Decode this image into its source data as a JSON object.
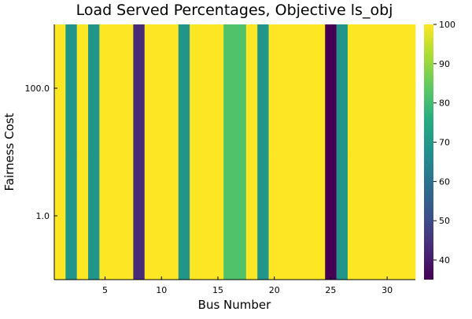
{
  "chart_data": {
    "type": "heatmap",
    "title": "Load Served Percentages, Objective ls_obj",
    "xlabel": "Bus Number",
    "ylabel": "Fairness Cost",
    "x_range": [
      0.5,
      32.5
    ],
    "x_ticks": [
      5,
      10,
      15,
      20,
      25,
      30
    ],
    "y_categories": [
      "1.0",
      "100.0"
    ],
    "colorbar": {
      "colormap": "viridis",
      "range": [
        35,
        100
      ],
      "ticks": [
        40,
        50,
        60,
        70,
        80,
        90,
        100
      ]
    },
    "grid": false,
    "bus_numbers": [
      1,
      2,
      3,
      4,
      5,
      6,
      7,
      8,
      9,
      10,
      11,
      12,
      13,
      14,
      15,
      16,
      17,
      18,
      19,
      20,
      21,
      22,
      23,
      24,
      25,
      26,
      27,
      28,
      29,
      30,
      31,
      32
    ],
    "values": [
      [
        100,
        69,
        100,
        69,
        100,
        100,
        100,
        43,
        100,
        100,
        100,
        69,
        100,
        100,
        100,
        82,
        82,
        100,
        69,
        100,
        100,
        100,
        100,
        100,
        35,
        69,
        100,
        100,
        100,
        100,
        100,
        100
      ],
      [
        100,
        69,
        100,
        69,
        100,
        100,
        100,
        43,
        100,
        100,
        100,
        69,
        100,
        100,
        100,
        82,
        82,
        100,
        69,
        100,
        100,
        100,
        100,
        100,
        35,
        69,
        100,
        100,
        100,
        100,
        100,
        100
      ]
    ]
  }
}
